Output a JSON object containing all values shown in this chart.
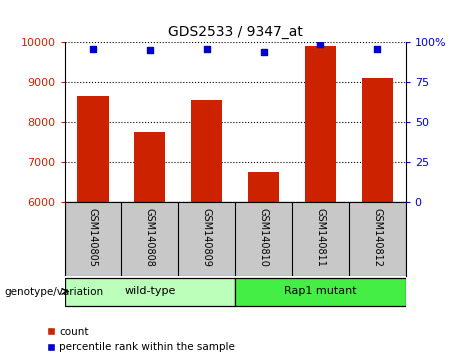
{
  "title": "GDS2533 / 9347_at",
  "samples": [
    "GSM140805",
    "GSM140808",
    "GSM140809",
    "GSM140810",
    "GSM140811",
    "GSM140812"
  ],
  "counts": [
    8650,
    7750,
    8550,
    6750,
    9900,
    9100
  ],
  "percentiles": [
    96,
    95,
    96,
    94,
    99,
    96
  ],
  "ylim_left": [
    6000,
    10000
  ],
  "ylim_right": [
    0,
    100
  ],
  "yticks_left": [
    6000,
    7000,
    8000,
    9000,
    10000
  ],
  "yticks_right": [
    0,
    25,
    50,
    75,
    100
  ],
  "ytick_labels_right": [
    "0",
    "25",
    "50",
    "75",
    "100%"
  ],
  "bar_color": "#cc2200",
  "dot_color": "#0000cc",
  "grid_color": "#000000",
  "groups": [
    {
      "label": "wild-type",
      "indices": [
        0,
        1,
        2
      ],
      "color": "#bbffbb"
    },
    {
      "label": "Rap1 mutant",
      "indices": [
        3,
        4,
        5
      ],
      "color": "#44ee44"
    }
  ],
  "group_label": "genotype/variation",
  "legend_count": "count",
  "legend_percentile": "percentile rank within the sample",
  "tick_label_color_left": "#cc2200",
  "tick_label_color_right": "#0000cc",
  "background_plot": "#ffffff",
  "background_xtick": "#c8c8c8"
}
